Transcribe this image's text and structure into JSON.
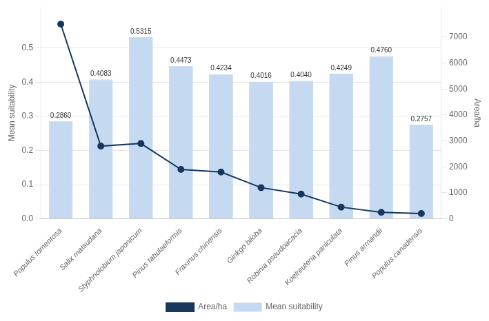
{
  "chart_data": {
    "type": "bar",
    "categories": [
      "Populus tomentosa",
      "Salix matsudana",
      "Styphnolobium japonicum",
      "Pinus tabulaeformis",
      "Fraxinus chinensis",
      "Ginkgo biloba",
      "Robinia pseudoacacia",
      "Koelreuteria paniculata",
      "Pinus armandii",
      "Populus canadensis"
    ],
    "series": [
      {
        "name": "Mean suitability",
        "type": "bar",
        "color": "#c5d9f1",
        "values": [
          0.286,
          0.4083,
          0.5315,
          0.4473,
          0.4234,
          0.4016,
          0.404,
          0.4249,
          0.476,
          0.2757
        ],
        "data_labels": true,
        "value_labels": [
          "0.2860",
          "0.4083",
          "0.5315",
          "0.4473",
          "0.4234",
          "0.4016",
          "0.4040",
          "0.4249",
          "0.4760",
          "0.2757"
        ]
      },
      {
        "name": "Area/ha",
        "type": "line",
        "axis": "y2",
        "color": "#17375e",
        "marker": "circle",
        "line_style": "solid",
        "values": [
          7500,
          2800,
          2900,
          1900,
          1800,
          1200,
          950,
          450,
          250,
          200
        ]
      }
    ],
    "ylabel": "Mean suitability",
    "y2label": "Area/ha",
    "ylim": [
      0.0,
      0.62
    ],
    "yticks": [
      {
        "value": 0.0,
        "label": "0.0"
      },
      0.1,
      0.2,
      0.3,
      0.4,
      0.5
    ],
    "y2lim": [
      0,
      8160
    ],
    "y2ticks": [
      0,
      1000,
      2000,
      3000,
      4000,
      5000,
      6000,
      7000
    ],
    "grid": true,
    "legend": "bottom"
  }
}
